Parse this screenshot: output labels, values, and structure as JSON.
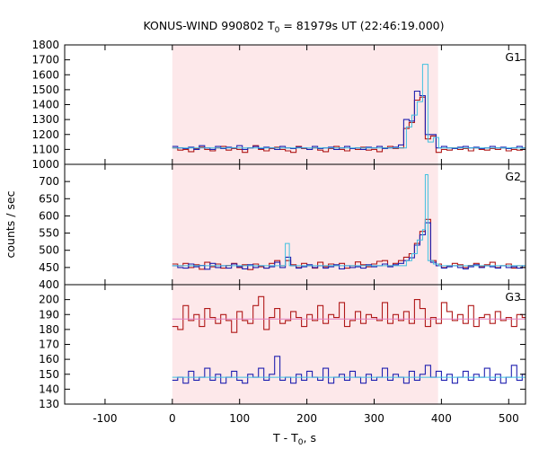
{
  "chart_data": {
    "type": "line",
    "title": "KONUS-WIND 990802 T",
    "title_sub": "0",
    "title_rest": " = 81979s UT (22:46:19.000)",
    "xlabel": "T - T",
    "xlabel_sub": "0",
    "xlabel_rest": ", s",
    "ylabel": "counts / sec",
    "xlim": [
      -160,
      525
    ],
    "xticks": [
      -100,
      0,
      100,
      200,
      300,
      400,
      500
    ],
    "xtick_labels": [
      "-100",
      "0",
      "100",
      "200",
      "300",
      "400",
      "500"
    ],
    "shaded_interval": [
      0,
      395
    ],
    "colors": {
      "series_a": "#b01818",
      "series_b": "#2020b0",
      "fit": "#40c0e0",
      "fit2": "#e080c0",
      "shade": "#fde8ea",
      "axes": "#000000"
    },
    "panels": [
      {
        "label": "G1",
        "ylim": [
          1000,
          1800
        ],
        "yticks": [
          1000,
          1100,
          1200,
          1300,
          1400,
          1500,
          1600,
          1700,
          1800
        ],
        "ytick_labels": [
          "1000",
          "1100",
          "1200",
          "1300",
          "1400",
          "1500",
          "1600",
          "1700",
          "1800"
        ],
        "background_level": 1110,
        "series": [
          {
            "key": "series_a",
            "x": [
              0,
              8,
              16,
              24,
              32,
              40,
              48,
              56,
              64,
              72,
              80,
              88,
              96,
              104,
              112,
              120,
              128,
              136,
              144,
              152,
              160,
              168,
              176,
              184,
              192,
              200,
              208,
              216,
              224,
              232,
              240,
              248,
              256,
              264,
              272,
              280,
              288,
              296,
              304,
              312,
              320,
              328,
              336,
              344,
              352,
              360,
              368,
              376,
              384,
              392,
              400,
              408,
              416,
              424,
              432,
              440,
              448,
              456,
              464,
              472,
              480,
              488,
              496,
              504,
              512,
              520
            ],
            "values": [
              1110,
              1095,
              1100,
              1085,
              1105,
              1115,
              1100,
              1090,
              1110,
              1120,
              1095,
              1105,
              1100,
              1080,
              1110,
              1125,
              1100,
              1090,
              1105,
              1115,
              1100,
              1090,
              1080,
              1120,
              1105,
              1100,
              1110,
              1095,
              1085,
              1105,
              1120,
              1100,
              1090,
              1105,
              1100,
              1115,
              1095,
              1100,
              1085,
              1110,
              1120,
              1105,
              1110,
              1240,
              1280,
              1430,
              1450,
              1170,
              1190,
              1080,
              1100,
              1095,
              1110,
              1100,
              1105,
              1090,
              1110,
              1100,
              1095,
              1105,
              1100,
              1110,
              1090,
              1100,
              1095,
              1100
            ]
          },
          {
            "key": "series_b",
            "x": [
              0,
              8,
              16,
              24,
              32,
              40,
              48,
              56,
              64,
              72,
              80,
              88,
              96,
              104,
              112,
              120,
              128,
              136,
              144,
              152,
              160,
              168,
              176,
              184,
              192,
              200,
              208,
              216,
              224,
              232,
              240,
              248,
              256,
              264,
              272,
              280,
              288,
              296,
              304,
              312,
              320,
              328,
              336,
              344,
              352,
              360,
              368,
              376,
              384,
              392,
              400,
              408,
              416,
              424,
              432,
              440,
              448,
              456,
              464,
              472,
              480,
              488,
              496,
              504,
              512,
              520
            ],
            "values": [
              1120,
              1110,
              1105,
              1115,
              1100,
              1125,
              1110,
              1100,
              1120,
              1105,
              1115,
              1110,
              1125,
              1100,
              1110,
              1120,
              1105,
              1115,
              1110,
              1100,
              1120,
              1110,
              1105,
              1115,
              1110,
              1100,
              1120,
              1105,
              1110,
              1115,
              1100,
              1110,
              1120,
              1105,
              1110,
              1100,
              1115,
              1110,
              1120,
              1105,
              1110,
              1115,
              1130,
              1300,
              1290,
              1490,
              1460,
              1200,
              1200,
              1110,
              1120,
              1110,
              1105,
              1115,
              1120,
              1110,
              1115,
              1105,
              1110,
              1120,
              1110,
              1115,
              1105,
              1110,
              1120,
              1110
            ]
          }
        ],
        "fit": {
          "x": [
            0,
            340,
            348,
            356,
            364,
            372,
            380,
            388,
            396,
            525
          ],
          "values": [
            1110,
            1110,
            1250,
            1330,
            1420,
            1670,
            1150,
            1180,
            1110,
            1110
          ]
        }
      },
      {
        "label": "G2",
        "ylim": [
          400,
          750
        ],
        "yticks": [
          400,
          450,
          500,
          550,
          600,
          650,
          700
        ],
        "ytick_labels": [
          "400",
          "450",
          "500",
          "550",
          "600",
          "650",
          "700"
        ],
        "background_level": 455,
        "series": [
          {
            "key": "series_a",
            "x": [
              0,
              8,
              16,
              24,
              32,
              40,
              48,
              56,
              64,
              72,
              80,
              88,
              96,
              104,
              112,
              120,
              128,
              136,
              144,
              152,
              160,
              168,
              176,
              184,
              192,
              200,
              208,
              216,
              224,
              232,
              240,
              248,
              256,
              264,
              272,
              280,
              288,
              296,
              304,
              312,
              320,
              328,
              336,
              344,
              352,
              360,
              368,
              376,
              384,
              392,
              400,
              408,
              416,
              424,
              432,
              440,
              448,
              456,
              464,
              472,
              480,
              488,
              496,
              504,
              512,
              520
            ],
            "values": [
              460,
              455,
              462,
              450,
              458,
              445,
              465,
              452,
              460,
              448,
              456,
              462,
              450,
              458,
              444,
              460,
              452,
              448,
              462,
              470,
              455,
              470,
              458,
              450,
              462,
              455,
              448,
              465,
              452,
              460,
              456,
              462,
              448,
              455,
              466,
              458,
              452,
              460,
              468,
              470,
              455,
              462,
              470,
              480,
              490,
              520,
              555,
              590,
              470,
              460,
              450,
              455,
              462,
              458,
              450,
              456,
              462,
              452,
              458,
              465,
              450,
              455,
              460,
              448,
              455,
              450
            ]
          },
          {
            "key": "series_b",
            "x": [
              0,
              8,
              16,
              24,
              32,
              40,
              48,
              56,
              64,
              72,
              80,
              88,
              96,
              104,
              112,
              120,
              128,
              136,
              144,
              152,
              160,
              168,
              176,
              184,
              192,
              200,
              208,
              216,
              224,
              232,
              240,
              248,
              256,
              264,
              272,
              280,
              288,
              296,
              304,
              312,
              320,
              328,
              336,
              344,
              352,
              360,
              368,
              376,
              384,
              392,
              400,
              408,
              416,
              424,
              432,
              440,
              448,
              456,
              464,
              472,
              480,
              488,
              496,
              504,
              512,
              520
            ],
            "values": [
              455,
              450,
              448,
              460,
              452,
              456,
              445,
              462,
              450,
              455,
              448,
              460,
              452,
              446,
              458,
              450,
              455,
              448,
              452,
              465,
              450,
              480,
              455,
              448,
              452,
              458,
              450,
              455,
              448,
              452,
              458,
              446,
              455,
              450,
              452,
              448,
              458,
              452,
              455,
              460,
              452,
              458,
              462,
              470,
              478,
              515,
              545,
              580,
              465,
              455,
              448,
              452,
              455,
              450,
              446,
              452,
              458,
              450,
              455,
              452,
              448,
              455,
              450,
              452,
              448,
              455
            ]
          }
        ],
        "fit": {
          "x": [
            0,
            166,
            168,
            172,
            174,
            340,
            348,
            356,
            364,
            372,
            376,
            380,
            388,
            396,
            525
          ],
          "values": [
            455,
            455,
            520,
            520,
            455,
            455,
            470,
            490,
            530,
            560,
            720,
            470,
            460,
            455,
            455
          ]
        }
      },
      {
        "label": "G3",
        "ylim": [
          130,
          210
        ],
        "yticks": [
          130,
          140,
          150,
          160,
          170,
          180,
          190,
          200
        ],
        "ytick_labels": [
          "130",
          "140",
          "150",
          "160",
          "170",
          "180",
          "190",
          "200"
        ],
        "series": [
          {
            "key": "series_a",
            "x": [
              0,
              8,
              16,
              24,
              32,
              40,
              48,
              56,
              64,
              72,
              80,
              88,
              96,
              104,
              112,
              120,
              128,
              136,
              144,
              152,
              160,
              168,
              176,
              184,
              192,
              200,
              208,
              216,
              224,
              232,
              240,
              248,
              256,
              264,
              272,
              280,
              288,
              296,
              304,
              312,
              320,
              328,
              336,
              344,
              352,
              360,
              368,
              376,
              384,
              392,
              400,
              408,
              416,
              424,
              432,
              440,
              448,
              456,
              464,
              472,
              480,
              488,
              496,
              504,
              512,
              520
            ],
            "values": [
              182,
              180,
              196,
              186,
              190,
              182,
              194,
              188,
              184,
              190,
              186,
              178,
              192,
              186,
              184,
              196,
              202,
              180,
              188,
              194,
              184,
              186,
              192,
              188,
              182,
              190,
              186,
              196,
              184,
              190,
              188,
              198,
              182,
              186,
              192,
              184,
              190,
              188,
              186,
              198,
              184,
              190,
              186,
              192,
              184,
              200,
              194,
              182,
              188,
              184,
              198,
              192,
              186,
              190,
              184,
              196,
              182,
              188,
              190,
              184,
              192,
              186,
              188,
              182,
              190,
              188
            ]
          },
          {
            "key": "series_b",
            "x": [
              0,
              8,
              16,
              24,
              32,
              40,
              48,
              56,
              64,
              72,
              80,
              88,
              96,
              104,
              112,
              120,
              128,
              136,
              144,
              152,
              160,
              168,
              176,
              184,
              192,
              200,
              208,
              216,
              224,
              232,
              240,
              248,
              256,
              264,
              272,
              280,
              288,
              296,
              304,
              312,
              320,
              328,
              336,
              344,
              352,
              360,
              368,
              376,
              384,
              392,
              400,
              408,
              416,
              424,
              432,
              440,
              448,
              456,
              464,
              472,
              480,
              488,
              496,
              504,
              512,
              520
            ],
            "values": [
              146,
              148,
              144,
              152,
              146,
              148,
              154,
              146,
              150,
              144,
              148,
              152,
              146,
              144,
              150,
              148,
              154,
              146,
              150,
              162,
              146,
              148,
              144,
              150,
              146,
              152,
              148,
              146,
              154,
              144,
              148,
              150,
              146,
              152,
              148,
              144,
              150,
              146,
              148,
              154,
              146,
              150,
              148,
              144,
              152,
              146,
              150,
              156,
              148,
              152,
              146,
              150,
              144,
              148,
              152,
              146,
              150,
              148,
              154,
              146,
              150,
              144,
              148,
              156,
              146,
              150
            ]
          }
        ],
        "fits": [
          {
            "key": "fit2",
            "x": [
              0,
              525
            ],
            "values": [
              187,
              187
            ]
          },
          {
            "key": "fit",
            "x": [
              0,
              525
            ],
            "values": [
              148,
              148
            ]
          }
        ]
      }
    ]
  }
}
